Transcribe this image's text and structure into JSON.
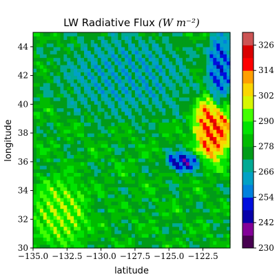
{
  "chart_data": {
    "type": "heatmap",
    "title_text": "LW Radiative Flux",
    "title_units": "(W m⁻²)",
    "xlabel": "latitude",
    "ylabel": "longitude",
    "xlim": [
      -135.0,
      -120.5
    ],
    "ylim": [
      30,
      45
    ],
    "xticks": [
      -135.0,
      -132.5,
      -130.0,
      -127.5,
      -125.0,
      -122.5
    ],
    "xtick_labels": [
      "−135.0",
      "−132.5",
      "−130.0",
      "−127.5",
      "−125.0",
      "−122.5"
    ],
    "yticks": [
      30,
      32,
      34,
      36,
      38,
      40,
      42,
      44
    ],
    "ytick_labels": [
      "30",
      "32",
      "34",
      "36",
      "38",
      "40",
      "42",
      "44"
    ],
    "colorbar": {
      "min": 230,
      "max": 332,
      "ticks": [
        230,
        242,
        254,
        266,
        278,
        290,
        302,
        314,
        326
      ],
      "tick_labels": [
        "230",
        "242",
        "254",
        "266",
        "278",
        "290",
        "302",
        "314",
        "326"
      ],
      "colormap": "nipy_spectral",
      "levels": 17
    },
    "field_summary": {
      "background_value": 278,
      "regions": [
        {
          "description": "warm coastal band along east edge",
          "lon_range": [
            36,
            41
          ],
          "lat_range": [
            -123.0,
            -120.5
          ],
          "value": 314
        },
        {
          "description": "cold strip along far north-east",
          "lon_range": [
            40,
            45
          ],
          "lat_range": [
            -122.0,
            -120.5
          ],
          "value": 254
        },
        {
          "description": "cool band in north",
          "lon_range": [
            39,
            45
          ],
          "lat_range": [
            -133.5,
            -123.0
          ],
          "value": 266
        },
        {
          "description": "cold patch near -124, 36",
          "lon_range": [
            35.5,
            36.5
          ],
          "lat_range": [
            -125.0,
            -123.0
          ],
          "value": 248
        },
        {
          "description": "warm patch south-west",
          "lon_range": [
            30,
            35
          ],
          "lat_range": [
            -135.0,
            -131.0
          ],
          "value": 292
        }
      ]
    }
  },
  "colors": {
    "axis": "#000000",
    "colorbar_outline": "#000000"
  }
}
